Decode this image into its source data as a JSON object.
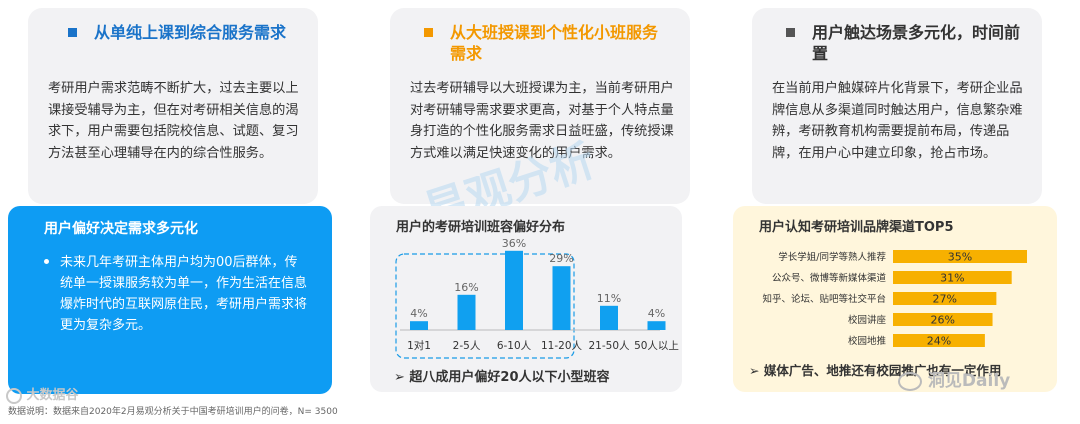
{
  "cards": [
    {
      "title": "从单纯上课到综合服务需求",
      "accent": "#1a73c9",
      "body": "考研用户需求范畴不断扩大，过去主要以上课接受辅导为主，但在对考研相关信息的渴求下，用户需要包括院校信息、试题、复习方法甚至心理辅导在内的综合性服务。"
    },
    {
      "title": "从大班授课到个性化小班服务需求",
      "accent": "#f39800",
      "body": "过去考研辅导以大班授课为主，当前考研用户对考研辅导需求要求更高，对基于个人特点量身打造的个性化服务需求日益旺盛，传统授课方式难以满足快速变化的用户需求。"
    },
    {
      "title": "用户触达场景多元化，时间前置",
      "accent": "#555555",
      "body": "在当前用户触媒碎片化背景下，考研企业品牌信息从多渠道同时触达用户，信息繁杂难辨，考研教育机构需要提前布局，传递品牌，在用户心中建立印象，抢占市场。"
    }
  ],
  "left_panel": {
    "title": "用户偏好决定需求多元化",
    "bullet": "未来几年考研主体用户均为00后群体，传统单一授课服务较为单一，作为生活在信息爆炸时代的互联网原住民，考研用户需求将更为复杂多元。"
  },
  "middle_note": "➢ 超八成用户偏好20人以下小型班容",
  "right_note": "➢ 媒体广告、地推还有校园推广也有一定作用",
  "footnote": "数据说明：数据来自2020年2月易观分析关于中国考研培训用户的问卷，N= 3500",
  "watermarks": {
    "center": "易观分析",
    "left_logo": "大数据谷",
    "right_logo": "洞见Daily"
  },
  "colors": {
    "bar_blue": "#10a0f0",
    "bar_orange": "#f7b000",
    "panel_blue": "#0e9cf3"
  },
  "chart_data": [
    {
      "type": "bar",
      "title": "用户的考研培训班容偏好分布",
      "categories": [
        "1对1",
        "2-5人",
        "6-10人",
        "11-20人",
        "21-50人",
        "50人以上"
      ],
      "values": [
        4,
        16,
        36,
        29,
        11,
        4
      ],
      "value_labels": [
        "4%",
        "16%",
        "36%",
        "29%",
        "11%",
        "4%"
      ],
      "ylim": [
        0,
        40
      ],
      "highlight": [
        "1对1",
        "2-5人",
        "6-10人",
        "11-20人"
      ],
      "xlabel": "",
      "ylabel": ""
    },
    {
      "type": "bar",
      "orientation": "horizontal",
      "title": "用户认知考研培训品牌渠道TOP5",
      "categories": [
        "学长学姐/同学等熟人推荐",
        "公众号、微博等新媒体渠道",
        "知乎、论坛、贴吧等社交平台",
        "校园讲座",
        "校园地推"
      ],
      "values": [
        35,
        31,
        27,
        26,
        24
      ],
      "value_labels": [
        "35%",
        "31%",
        "27%",
        "26%",
        "24%"
      ],
      "xlim": [
        0,
        35
      ],
      "xlabel": "",
      "ylabel": ""
    }
  ]
}
